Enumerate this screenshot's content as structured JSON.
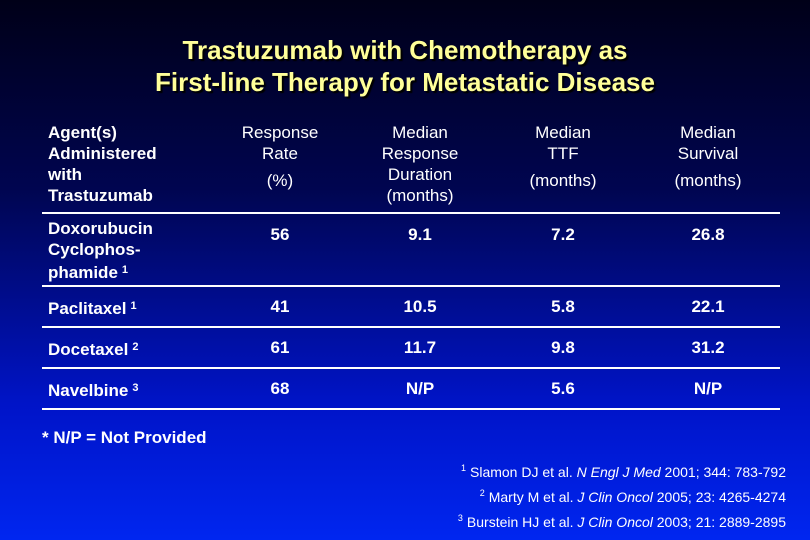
{
  "title": {
    "line1": "Trastuzumab with Chemotherapy as",
    "line2": "First-line Therapy for Metastatic Disease"
  },
  "table": {
    "headers": [
      {
        "lines": [
          "Agent(s)",
          "Administered",
          "with",
          "Trastuzumab"
        ]
      },
      {
        "lines": [
          "Response",
          "Rate"
        ],
        "units": "(%)"
      },
      {
        "lines": [
          "Median",
          "Response",
          "Duration",
          "(months)"
        ]
      },
      {
        "lines": [
          "Median",
          "TTF"
        ],
        "units": "(months)"
      },
      {
        "lines": [
          "Median",
          "Survival"
        ],
        "units": "(months)"
      }
    ],
    "rows": [
      {
        "agent_lines": [
          "Doxorubucin",
          "Cyclophos-",
          "phamide"
        ],
        "ref": "1",
        "response_rate": "56",
        "median_response_duration": "9.1",
        "median_ttf": "7.2",
        "median_survival": "26.8"
      },
      {
        "agent_lines": [
          "Paclitaxel"
        ],
        "ref": "1",
        "response_rate": "41",
        "median_response_duration": "10.5",
        "median_ttf": "5.8",
        "median_survival": "22.1"
      },
      {
        "agent_lines": [
          "Docetaxel"
        ],
        "ref": "2",
        "response_rate": "61",
        "median_response_duration": "11.7",
        "median_ttf": "9.8",
        "median_survival": "31.2"
      },
      {
        "agent_lines": [
          "Navelbine"
        ],
        "ref": "3",
        "response_rate": "68",
        "median_response_duration": "N/P",
        "median_ttf": "5.6",
        "median_survival": "N/P"
      }
    ]
  },
  "footnote": "* N/P = Not Provided",
  "references": [
    {
      "num": "1",
      "authors": "Slamon DJ et al.",
      "journal": "N Engl J Med",
      "citation": "2001; 344: 783-792"
    },
    {
      "num": "2",
      "authors": "Marty M et al.",
      "journal": "J Clin Oncol",
      "citation": "2005; 23: 4265-4274"
    },
    {
      "num": "3",
      "authors": "Burstein HJ et al.",
      "journal": "J Clin Oncol",
      "citation": "2003; 21: 2889-2895"
    }
  ],
  "colors": {
    "title": "#ffff99",
    "text": "#ffffff",
    "background_top": "#000018",
    "background_bottom": "#0026f0"
  }
}
